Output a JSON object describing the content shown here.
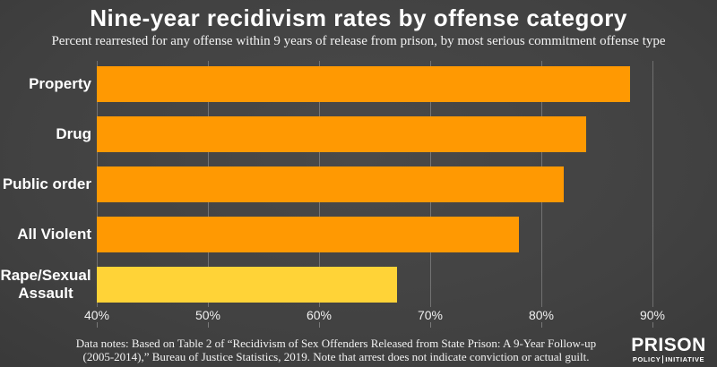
{
  "chart_data": {
    "type": "bar",
    "orientation": "horizontal",
    "title": "Nine-year recidivism rates by offense category",
    "subtitle": "Percent rearrested for any offense within 9 years of release from prison, by most serious commitment offense type",
    "categories": [
      "Property",
      "Drug",
      "Public order",
      "All Violent",
      "Rape/Sexual Assault"
    ],
    "values": [
      88,
      84,
      82,
      78,
      67
    ],
    "unit": "%",
    "bar_colors": [
      "#FF9902",
      "#FF9902",
      "#FF9902",
      "#FF9902",
      "#FFD337"
    ],
    "xlim": [
      40,
      90
    ],
    "x_tick_labels": [
      "40%",
      "50%",
      "60%",
      "70%",
      "80%",
      "90%"
    ],
    "grid": true,
    "legend": "none",
    "background_color": "#3d3d3d",
    "text_color": "#ffffff"
  },
  "footer": {
    "data_notes": "Data notes: Based on Table 2 of “Recidivism of Sex Offenders Released from State Prison: A 9-Year Follow-up (2005-2014),” Bureau of Justice Statistics, 2019. Note that arrest does not indicate conviction or actual guilt.",
    "logo": {
      "line1": "PRISON",
      "line2a": "POLICY",
      "line2b": "INITIATIVE"
    }
  }
}
